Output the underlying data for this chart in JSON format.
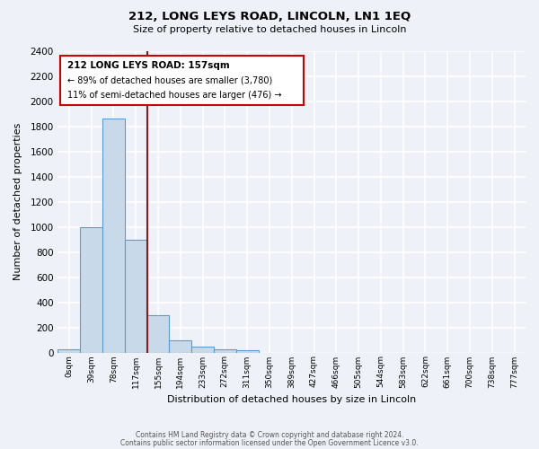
{
  "title": "212, LONG LEYS ROAD, LINCOLN, LN1 1EQ",
  "subtitle": "Size of property relative to detached houses in Lincoln",
  "xlabel": "Distribution of detached houses by size in Lincoln",
  "ylabel": "Number of detached properties",
  "bar_color": "#c8daea",
  "bar_edge_color": "#5b9bd5",
  "vline_color": "#8b1a1a",
  "categories": [
    "0sqm",
    "39sqm",
    "78sqm",
    "117sqm",
    "155sqm",
    "194sqm",
    "233sqm",
    "272sqm",
    "311sqm",
    "350sqm",
    "389sqm",
    "427sqm",
    "466sqm",
    "505sqm",
    "544sqm",
    "583sqm",
    "622sqm",
    "661sqm",
    "700sqm",
    "738sqm",
    "777sqm"
  ],
  "values": [
    25,
    1000,
    1860,
    900,
    300,
    100,
    45,
    25,
    20,
    0,
    0,
    0,
    0,
    0,
    0,
    0,
    0,
    0,
    0,
    0,
    0
  ],
  "ylim": [
    0,
    2400
  ],
  "yticks": [
    0,
    200,
    400,
    600,
    800,
    1000,
    1200,
    1400,
    1600,
    1800,
    2000,
    2200,
    2400
  ],
  "annotation_title": "212 LONG LEYS ROAD: 157sqm",
  "annotation_line1": "← 89% of detached houses are smaller (3,780)",
  "annotation_line2": "11% of semi-detached houses are larger (476) →",
  "annotation_box_color": "#ffffff",
  "annotation_box_edge_color": "#cc0000",
  "footer1": "Contains HM Land Registry data © Crown copyright and database right 2024.",
  "footer2": "Contains public sector information licensed under the Open Government Licence v3.0.",
  "bg_color": "#eef2f8",
  "plot_bg_color": "#eef2f8",
  "grid_color": "#ffffff"
}
